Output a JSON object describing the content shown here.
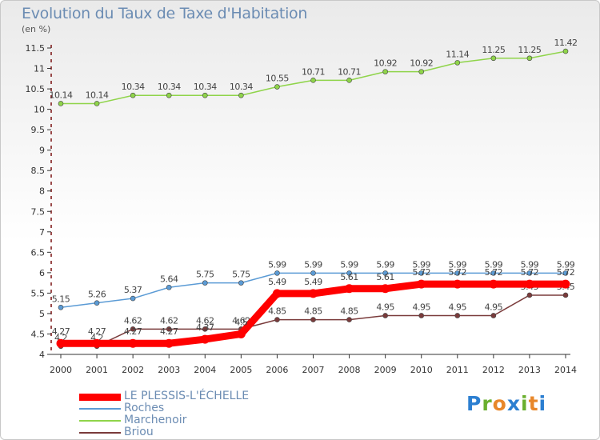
{
  "header": {
    "title": "Evolution du Taux de Taxe d'Habitation",
    "subtitle": "(en %)"
  },
  "logo": {
    "text": "Proxiti",
    "letters": [
      {
        "ch": "P",
        "color": "#2c7fd1"
      },
      {
        "ch": "r",
        "color": "#6aaf2e"
      },
      {
        "ch": "o",
        "color": "#e8872a"
      },
      {
        "ch": "x",
        "color": "#2c7fd1"
      },
      {
        "ch": "i",
        "color": "#6aaf2e"
      },
      {
        "ch": "t",
        "color": "#e8872a"
      },
      {
        "ch": "i",
        "color": "#2c7fd1"
      }
    ]
  },
  "chart_data": {
    "type": "line",
    "title": "Evolution du Taux de Taxe d'Habitation",
    "ylabel": "(en %)",
    "xlabel": "",
    "x": [
      "2000",
      "2001",
      "2002",
      "2003",
      "2004",
      "2005",
      "2006",
      "2007",
      "2008",
      "2009",
      "2010",
      "2011",
      "2012",
      "2013",
      "2014"
    ],
    "ylim": [
      4,
      11.5
    ],
    "yticks": [
      4,
      4.5,
      5,
      5.5,
      6,
      6.5,
      7,
      7.5,
      8,
      8.5,
      9,
      9.5,
      10,
      10.5,
      11,
      11.5
    ],
    "ytick_labels": [
      "4",
      "4.5",
      "5",
      "5.5",
      "6",
      "6.5",
      "7",
      "7.5",
      "8",
      "8.5",
      "9",
      "9.5",
      "10",
      "10.5",
      "11",
      "11.5"
    ],
    "grid": false,
    "legend_position": "bottom-left",
    "series": [
      {
        "name": "LE PLESSIS-L'ÉCHELLE",
        "color": "#ff0000",
        "values": [
          4.27,
          4.27,
          4.27,
          4.27,
          4.37,
          4.5,
          5.49,
          5.49,
          5.61,
          5.61,
          5.72,
          5.72,
          5.72,
          5.72,
          5.72
        ],
        "labels": [
          "4.27",
          "4.27",
          "4.27",
          "4.27",
          "4.37",
          "4.5",
          "5.49",
          "5.49",
          "5.61",
          "5.61",
          "5.72",
          "5.72",
          "5.72",
          "5.72",
          "5.72"
        ]
      },
      {
        "name": "Roches",
        "color": "#5b9bd5",
        "values": [
          5.15,
          5.26,
          5.37,
          5.64,
          5.75,
          5.75,
          5.99,
          5.99,
          5.99,
          5.99,
          5.99,
          5.99,
          5.99,
          5.99,
          5.99
        ],
        "labels": [
          "5.15",
          "5.26",
          "5.37",
          "5.64",
          "5.75",
          "5.75",
          "5.99",
          "5.99",
          "5.99",
          "5.99",
          "5.99",
          "5.99",
          "5.99",
          "5.99",
          "5.99"
        ]
      },
      {
        "name": "Marchenoir",
        "color": "#8fd44a",
        "values": [
          10.14,
          10.14,
          10.34,
          10.34,
          10.34,
          10.34,
          10.55,
          10.71,
          10.71,
          10.92,
          10.92,
          11.14,
          11.25,
          11.25,
          11.42
        ],
        "labels": [
          "10.14",
          "10.14",
          "10.34",
          "10.34",
          "10.34",
          "10.34",
          "10.55",
          "10.71",
          "10.71",
          "10.92",
          "10.92",
          "11.14",
          "11.25",
          "11.25",
          "11.42"
        ]
      },
      {
        "name": "Briou",
        "color": "#7a3b3b",
        "values": [
          4.2,
          4.2,
          4.62,
          4.62,
          4.62,
          4.62,
          4.85,
          4.85,
          4.85,
          4.95,
          4.95,
          4.95,
          4.95,
          5.45,
          5.45
        ],
        "labels": [
          "4.2",
          "4.2",
          "4.62",
          "4.62",
          "4.62",
          "4.62",
          "4.85",
          "4.85",
          "4.85",
          "4.95",
          "4.95",
          "4.95",
          "4.95",
          "5.45",
          "5.45"
        ]
      }
    ]
  }
}
